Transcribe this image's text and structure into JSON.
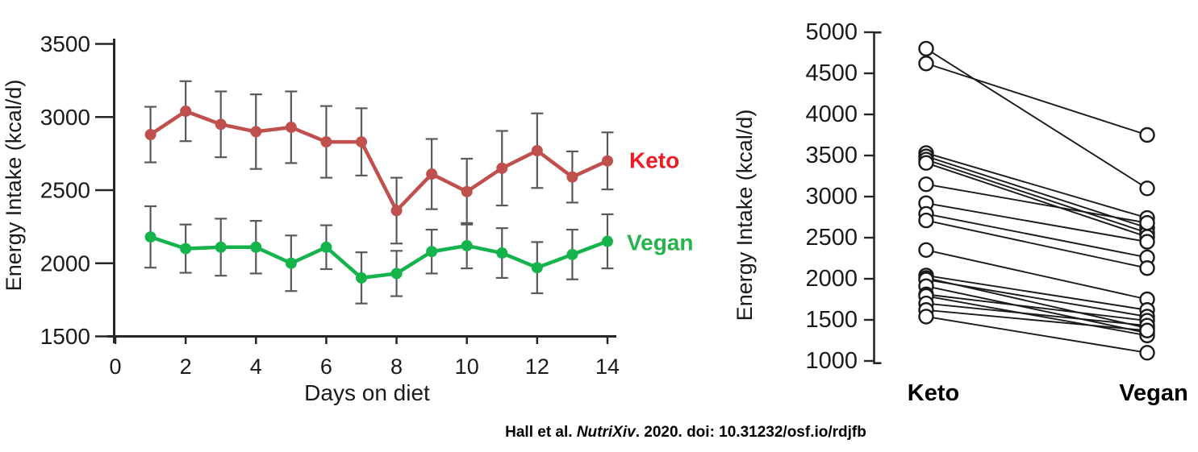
{
  "page": {
    "background": "#ffffff"
  },
  "citation": {
    "prefix": "Hall et al. ",
    "journal_italic": "NutriXiv",
    "suffix": ". 2020. doi: 10.31232/osf.io/rdjfb"
  },
  "colors": {
    "keto_line": "#c0504d",
    "vegan_line": "#15b34c",
    "keto_label": "#ed1c24",
    "vegan_label": "#27b34c",
    "error_bar": "#595959",
    "axis": "#262626",
    "tick_text": "#1a1a1a",
    "pair_line": "#1a1a1a",
    "pair_circle_fill": "#ffffff"
  },
  "chart_data": [
    {
      "id": "mean-energy-timeseries",
      "type": "line",
      "title": "",
      "xlabel": "Days on diet",
      "ylabel": "Energy Intake (kcal/d)",
      "x": [
        1,
        2,
        3,
        4,
        5,
        6,
        7,
        8,
        9,
        10,
        11,
        12,
        13,
        14
      ],
      "xticks": [
        0,
        2,
        4,
        6,
        8,
        10,
        12,
        14
      ],
      "xlim": [
        0,
        14.3
      ],
      "ylim": [
        1500,
        3500
      ],
      "yticks": [
        1500,
        2000,
        2500,
        3000,
        3500
      ],
      "grid": false,
      "error_bars": true,
      "legend_position": "right-of-line-labels",
      "series": [
        {
          "name": "Keto",
          "values": [
            2880,
            3040,
            2950,
            2900,
            2930,
            2830,
            2830,
            2360,
            2610,
            2490,
            2650,
            2770,
            2590,
            2700
          ],
          "errors": [
            190,
            205,
            225,
            255,
            245,
            245,
            230,
            225,
            240,
            225,
            255,
            255,
            175,
            195
          ]
        },
        {
          "name": "Vegan",
          "values": [
            2180,
            2100,
            2110,
            2110,
            2000,
            2110,
            1900,
            1930,
            2080,
            2120,
            2070,
            1970,
            2060,
            2150
          ],
          "errors": [
            210,
            165,
            195,
            180,
            190,
            150,
            175,
            155,
            150,
            155,
            170,
            175,
            170,
            185
          ]
        }
      ]
    },
    {
      "id": "paired-subject-slopegraph",
      "type": "scatter",
      "subtype": "paired-slope",
      "title": "",
      "xlabel": "",
      "ylabel": "Energy Intake (kcal/d)",
      "categories": [
        "Keto",
        "Vegan"
      ],
      "ylim": [
        1000,
        5000
      ],
      "yticks": [
        1000,
        1500,
        2000,
        2500,
        3000,
        3500,
        4000,
        4500,
        5000
      ],
      "grid": false,
      "marker": "open-circle",
      "pairs_keto_to_vegan": [
        [
          4800,
          3100
        ],
        [
          4620,
          3750
        ],
        [
          3530,
          2740
        ],
        [
          3490,
          2620
        ],
        [
          3450,
          2560
        ],
        [
          3410,
          2510
        ],
        [
          3150,
          2680
        ],
        [
          2920,
          2450
        ],
        [
          2790,
          2260
        ],
        [
          2710,
          2130
        ],
        [
          2350,
          1750
        ],
        [
          2040,
          1620
        ],
        [
          2010,
          1400
        ],
        [
          1990,
          1540
        ],
        [
          1910,
          1340
        ],
        [
          1810,
          1490
        ],
        [
          1790,
          1310
        ],
        [
          1700,
          1430
        ],
        [
          1620,
          1370
        ],
        [
          1540,
          1100
        ]
      ]
    }
  ]
}
